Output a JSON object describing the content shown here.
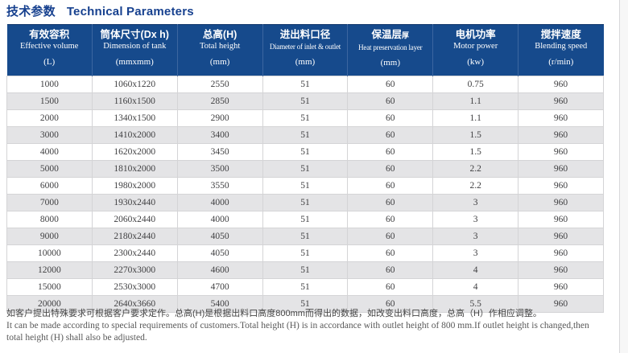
{
  "page": {
    "title_zh": "技术参数",
    "title_en": "Technical Parameters"
  },
  "table": {
    "columns": [
      {
        "zh": "有效容积",
        "en": "Effective volume",
        "unit": "(L)"
      },
      {
        "zh": "筒体尺寸(Dx h)",
        "en": "Dimension of tank",
        "unit": "(mmxmm)"
      },
      {
        "zh": "总高(H)",
        "en": "Total height",
        "unit": "(mm)"
      },
      {
        "zh": "进出料口径",
        "en": "Diameter of inlet & outlet",
        "unit": "(mm)",
        "compact": true
      },
      {
        "zh": "保温层",
        "zh_small": "厚",
        "en": "Heat preservation layer",
        "unit": "(mm)",
        "compact": true
      },
      {
        "zh": "电机功率",
        "en": "Motor power",
        "unit": "(kw)"
      },
      {
        "zh": "搅拌速度",
        "en": "Blending speed",
        "unit": "(r/min)"
      }
    ],
    "rows": [
      [
        "1000",
        "1060x1220",
        "2550",
        "51",
        "60",
        "0.75",
        "960"
      ],
      [
        "1500",
        "1160x1500",
        "2850",
        "51",
        "60",
        "1.1",
        "960"
      ],
      [
        "2000",
        "1340x1500",
        "2900",
        "51",
        "60",
        "1.1",
        "960"
      ],
      [
        "3000",
        "1410x2000",
        "3400",
        "51",
        "60",
        "1.5",
        "960"
      ],
      [
        "4000",
        "1620x2000",
        "3450",
        "51",
        "60",
        "1.5",
        "960"
      ],
      [
        "5000",
        "1810x2000",
        "3500",
        "51",
        "60",
        "2.2",
        "960"
      ],
      [
        "6000",
        "1980x2000",
        "3550",
        "51",
        "60",
        "2.2",
        "960"
      ],
      [
        "7000",
        "1930x2440",
        "4000",
        "51",
        "60",
        "3",
        "960"
      ],
      [
        "8000",
        "2060x2440",
        "4000",
        "51",
        "60",
        "3",
        "960"
      ],
      [
        "9000",
        "2180x2440",
        "4050",
        "51",
        "60",
        "3",
        "960"
      ],
      [
        "10000",
        "2300x2440",
        "4050",
        "51",
        "60",
        "3",
        "960"
      ],
      [
        "12000",
        "2270x3000",
        "4600",
        "51",
        "60",
        "4",
        "960"
      ],
      [
        "15000",
        "2530x3000",
        "4700",
        "51",
        "60",
        "4",
        "960"
      ],
      [
        "20000",
        "2640x3660",
        "5400",
        "51",
        "60",
        "5.5",
        "960"
      ]
    ]
  },
  "footer": {
    "zh": "如客户提出特殊要求可根据客户要求定作。总高(H)是根据出料口高度800mm而得出的数据，如改变出料口高度，总高（H）作相应调整。",
    "en_line1": "It can be made according to special requirements of customers.Total height (H) is in accordance with outlet height of 800 mm.If outlet height is changed,then",
    "en_line2": "total height (H) shall also be adjusted."
  },
  "colors": {
    "header_bg": "#164a8c",
    "header_divider": "#3c66a0",
    "title_text": "#17418f",
    "row_alt_bg": "#e4e4e6",
    "cell_border": "#d4d4d6",
    "body_text": "#3f3f41"
  }
}
